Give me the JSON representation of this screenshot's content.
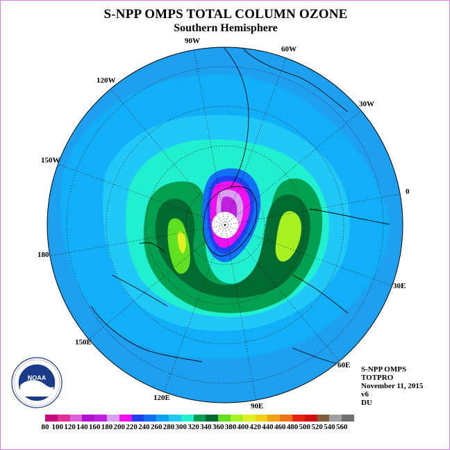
{
  "title": "S-NPP OMPS TOTAL COLUMN OZONE",
  "subtitle": "Southern Hemisphere",
  "logo": {
    "name": "NOAA",
    "ring_text": "NATIONAL OCEANIC AND ATMOSPHERIC ADMINISTRATION · U.S. DEPARTMENT OF COMMERCE"
  },
  "longitude_labels": [
    "90W",
    "60W",
    "30W",
    "0",
    "30E",
    "60E",
    "90E",
    "120E",
    "150E",
    "180",
    "150W",
    "120W"
  ],
  "info": {
    "instrument": "S-NPP OMPS",
    "product": "TOTPRO",
    "date": "November 11, 2015",
    "version": "v6",
    "units": "DU"
  },
  "colorbar": {
    "ticks": [
      "80",
      "100",
      "120",
      "140",
      "160",
      "180",
      "200",
      "220",
      "240",
      "260",
      "280",
      "300",
      "320",
      "340",
      "360",
      "380",
      "400",
      "420",
      "440",
      "460",
      "480",
      "500",
      "520",
      "540",
      "560"
    ],
    "colors": [
      "#c8087c",
      "#e03096",
      "#e060d8",
      "#b010d0",
      "#c020e0",
      "#d8a0f0",
      "#f010f0",
      "#2040f0",
      "#1070f8",
      "#10a0f8",
      "#20c8f8",
      "#20f0d0",
      "#00a050",
      "#006a30",
      "#60e020",
      "#a8f020",
      "#e0f020",
      "#f0d010",
      "#f0a010",
      "#f07010",
      "#e82010",
      "#d01010",
      "#80603c",
      "#a0a0a0",
      "#707070"
    ]
  },
  "colors": {
    "ocean_base": "#1ea0f0",
    "polar_no_data": "#ffffff",
    "grid": "#000000"
  }
}
